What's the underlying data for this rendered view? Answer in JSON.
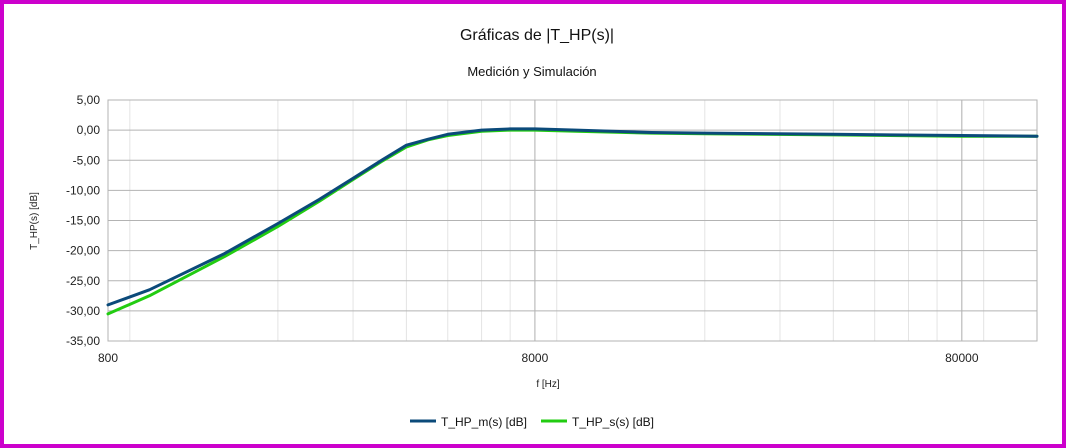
{
  "chart_data": {
    "type": "line",
    "title": "Gráficas de |T_HP(s)|",
    "subtitle": "Medición y Simulación",
    "xlabel": "f [Hz]",
    "ylabel": "T_HP(s) [dB]",
    "xscale": "log",
    "xlim": [
      800,
      120000
    ],
    "ylim": [
      -35,
      5
    ],
    "x_ticks": [
      800,
      8000,
      80000
    ],
    "x_tick_labels": [
      "800",
      "8000",
      "80000"
    ],
    "y_ticks": [
      5,
      0,
      -5,
      -10,
      -15,
      -20,
      -25,
      -30,
      -35
    ],
    "y_tick_labels": [
      "5,00",
      "0,00",
      "-5,00",
      "-10,00",
      "-15,00",
      "-20,00",
      "-25,00",
      "-30,00",
      "-35,00"
    ],
    "grid": true,
    "legend_position": "bottom",
    "series": [
      {
        "name": "T_HP_m(s) [dB]",
        "color": "#0b4a7a",
        "x": [
          800,
          1000,
          1500,
          2000,
          2500,
          3000,
          3500,
          4000,
          4500,
          5000,
          6000,
          7000,
          8000,
          10000,
          15000,
          20000,
          40000,
          80000,
          120000
        ],
        "y": [
          -29.0,
          -26.5,
          -20.5,
          -15.5,
          -11.5,
          -8.0,
          -5.0,
          -2.5,
          -1.5,
          -0.7,
          0.0,
          0.2,
          0.2,
          0.0,
          -0.4,
          -0.5,
          -0.7,
          -0.9,
          -1.0
        ]
      },
      {
        "name": "T_HP_s(s) [dB]",
        "color": "#22cc11",
        "x": [
          800,
          1000,
          1500,
          2000,
          2500,
          3000,
          3500,
          4000,
          4500,
          5000,
          6000,
          7000,
          8000,
          10000,
          15000,
          20000,
          40000,
          80000,
          120000
        ],
        "y": [
          -30.5,
          -27.5,
          -21.0,
          -16.0,
          -11.8,
          -8.2,
          -5.2,
          -2.8,
          -1.6,
          -0.9,
          -0.2,
          0.0,
          0.0,
          -0.2,
          -0.5,
          -0.6,
          -0.8,
          -1.0,
          -1.0
        ]
      }
    ]
  }
}
